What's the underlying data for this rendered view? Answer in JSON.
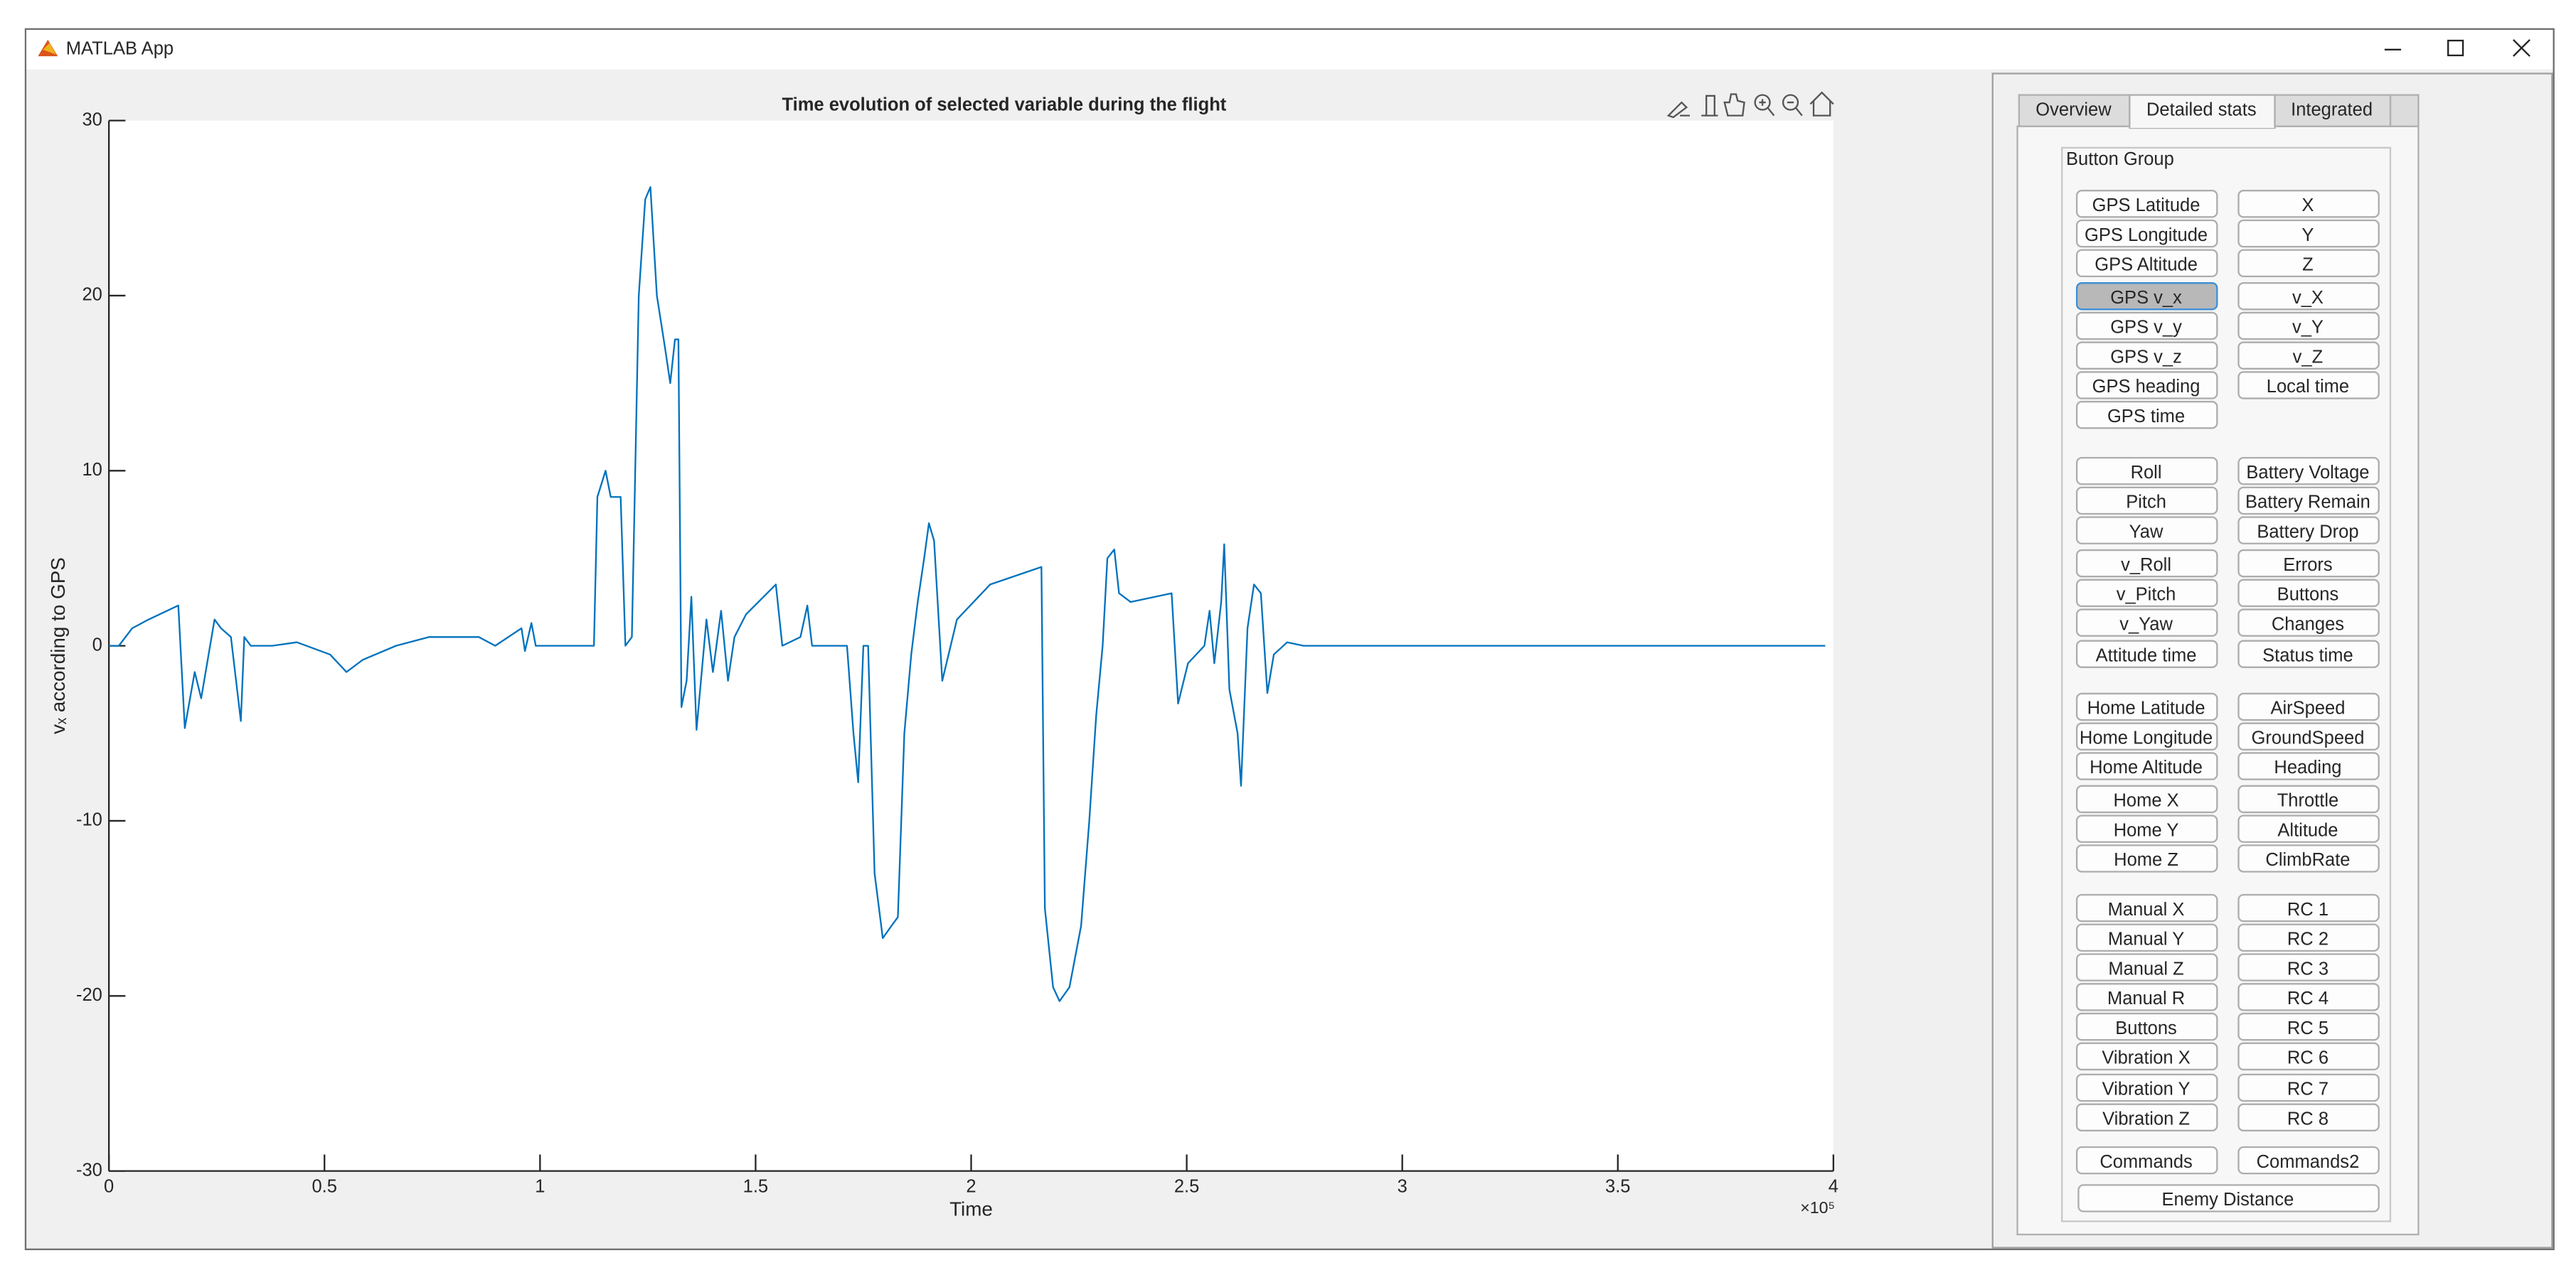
{
  "window": {
    "title": "MATLAB App"
  },
  "tabs": [
    "Overview",
    "Detailed stats",
    "Integrated"
  ],
  "button_group": {
    "title": "Button Group",
    "sections": [
      {
        "left": [
          "GPS Latitude",
          "GPS Longitude",
          "GPS Altitude",
          "GPS v_x",
          "GPS v_y",
          "GPS v_z",
          "GPS heading",
          "GPS time"
        ],
        "right": [
          "X",
          "Y",
          "Z",
          "v_X",
          "v_Y",
          "v_Z",
          "Local time"
        ]
      },
      {
        "left": [
          "Roll",
          "Pitch",
          "Yaw",
          "v_Roll",
          "v_Pitch",
          "v_Yaw",
          "Attitude time"
        ],
        "right": [
          "Battery Voltage",
          "Battery Remain",
          "Battery Drop",
          "Errors",
          "Buttons",
          "Changes",
          "Status time"
        ]
      },
      {
        "left": [
          "Home Latitude",
          "Home Longitude",
          "Home Altitude",
          "Home X",
          "Home Y",
          "Home Z"
        ],
        "right": [
          "AirSpeed",
          "GroundSpeed",
          "Heading",
          "Throttle",
          "Altitude",
          "ClimbRate"
        ]
      },
      {
        "left": [
          "Manual X",
          "Manual Y",
          "Manual Z",
          "Manual R",
          "Buttons",
          "Vibration X",
          "Vibration Y",
          "Vibration Z"
        ],
        "right": [
          "RC 1",
          "RC 2",
          "RC 3",
          "RC 4",
          "RC 5",
          "RC 6",
          "RC 7",
          "RC 8"
        ]
      },
      {
        "left": [
          "Commands"
        ],
        "right": [
          "Commands2"
        ]
      }
    ],
    "wide": [
      "Enemy Distance"
    ]
  },
  "chart_data": {
    "type": "line",
    "title": "Time evolution of selected variable during the flight",
    "x_label": "Time",
    "x_exponent_label": "×10⁵",
    "y_label": "vₓ according to GPS",
    "xlim": [
      0,
      4
    ],
    "ylim": [
      -30,
      30
    ],
    "xticks": [
      0,
      0.5,
      1,
      1.5,
      2,
      2.5,
      3,
      3.5,
      4
    ],
    "yticks": [
      -30,
      -20,
      -10,
      0,
      10,
      20,
      30
    ],
    "grid": false,
    "series": [
      {
        "color": "#0072bd",
        "x": [
          0,
          0.023,
          0.054,
          0.092,
          0.161,
          0.176,
          0.199,
          0.214,
          0.245,
          0.26,
          0.283,
          0.306,
          0.314,
          0.329,
          0.379,
          0.436,
          0.513,
          0.551,
          0.589,
          0.666,
          0.743,
          0.858,
          0.896,
          0.957,
          0.965,
          0.98,
          0.99,
          1.125,
          1.133,
          1.152,
          1.164,
          1.187,
          1.198,
          1.213,
          1.229,
          1.244,
          1.256,
          1.271,
          1.29,
          1.302,
          1.313,
          1.321,
          1.328,
          1.34,
          1.351,
          1.363,
          1.386,
          1.401,
          1.42,
          1.436,
          1.451,
          1.478,
          1.547,
          1.562,
          1.604,
          1.62,
          1.631,
          1.712,
          1.727,
          1.738,
          1.75,
          1.761,
          1.776,
          1.795,
          1.815,
          1.83,
          1.845,
          1.861,
          1.876,
          1.891,
          1.902,
          1.914,
          1.933,
          1.967,
          2.044,
          2.163,
          2.171,
          2.19,
          2.205,
          2.228,
          2.255,
          2.274,
          2.29,
          2.305,
          2.316,
          2.332,
          2.343,
          2.37,
          2.465,
          2.48,
          2.503,
          2.541,
          2.553,
          2.564,
          2.58,
          2.587,
          2.599,
          2.618,
          2.626,
          2.641,
          2.656,
          2.672,
          2.687,
          2.702,
          2.733,
          2.771,
          3.981
        ],
        "values": [
          0,
          0,
          1,
          1.5,
          2.3,
          -4.7,
          -1.5,
          -3,
          1.5,
          1,
          0.5,
          -4.3,
          0.5,
          0,
          0,
          0.2,
          -0.5,
          -1.5,
          -0.8,
          0,
          0.5,
          0.5,
          0,
          1,
          -0.3,
          1.3,
          0,
          0,
          8.5,
          10,
          8.5,
          8.5,
          0,
          0.5,
          20,
          25.5,
          26.2,
          20,
          17,
          15,
          17.5,
          17.5,
          -3.5,
          -2,
          2.8,
          -4.8,
          1.5,
          -1.5,
          2,
          -2,
          0.5,
          1.8,
          3.5,
          0,
          0.5,
          2.3,
          0,
          0,
          -5,
          -7.8,
          0,
          0,
          -13,
          -16.7,
          -16,
          -15.5,
          -5,
          -0.5,
          2.5,
          5,
          7,
          6,
          -2,
          1.5,
          3.5,
          4.5,
          -15,
          -19.5,
          -20.3,
          -19.5,
          -16,
          -10,
          -4,
          0,
          5,
          5.5,
          3,
          2.5,
          3,
          -3.3,
          -1,
          0,
          2,
          -1,
          2.5,
          5.8,
          -2.5,
          -5,
          -8,
          1,
          3.5,
          3,
          -2.7,
          -0.5,
          0.2,
          0,
          0
        ]
      }
    ]
  }
}
